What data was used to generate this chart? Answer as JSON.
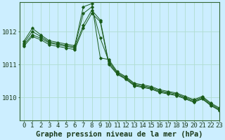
{
  "xlabel": "Graphe pression niveau de la mer (hPa)",
  "background_color": "#cceeff",
  "grid_color": "#b0ddd0",
  "line_color": "#1a5c1a",
  "xlim": [
    -0.5,
    23
  ],
  "ylim": [
    1009.3,
    1012.9
  ],
  "xticks": [
    0,
    1,
    2,
    3,
    4,
    5,
    6,
    7,
    8,
    9,
    10,
    11,
    12,
    13,
    14,
    15,
    16,
    17,
    18,
    19,
    20,
    21,
    22,
    23
  ],
  "yticks": [
    1010,
    1011,
    1012
  ],
  "series": [
    [
      1011.55,
      1011.85,
      1011.75,
      1011.6,
      1011.55,
      1011.5,
      1011.45,
      1012.1,
      1012.55,
      1012.3,
      1011.0,
      1010.7,
      1010.55,
      1010.35,
      1010.3,
      1010.25,
      1010.15,
      1010.1,
      1010.05,
      1009.95,
      1009.85,
      1009.95,
      1009.75,
      1009.6
    ],
    [
      1011.6,
      1011.9,
      1011.8,
      1011.65,
      1011.6,
      1011.55,
      1011.5,
      1012.2,
      1012.65,
      1012.35,
      1011.05,
      1010.72,
      1010.57,
      1010.37,
      1010.32,
      1010.27,
      1010.17,
      1010.12,
      1010.07,
      1009.97,
      1009.87,
      1009.97,
      1009.77,
      1009.62
    ],
    [
      1011.65,
      1012.0,
      1011.85,
      1011.68,
      1011.63,
      1011.58,
      1011.53,
      1012.55,
      1012.75,
      1011.8,
      1011.1,
      1010.75,
      1010.6,
      1010.4,
      1010.35,
      1010.3,
      1010.2,
      1010.15,
      1010.1,
      1010.0,
      1009.9,
      1010.0,
      1009.8,
      1009.65
    ],
    [
      1011.7,
      1012.1,
      1011.9,
      1011.72,
      1011.67,
      1011.62,
      1011.57,
      1012.75,
      1012.85,
      1011.2,
      1011.15,
      1010.78,
      1010.63,
      1010.43,
      1010.38,
      1010.33,
      1010.23,
      1010.18,
      1010.13,
      1010.03,
      1009.93,
      1010.03,
      1009.83,
      1009.68
    ]
  ],
  "xlabel_fontsize": 7.5,
  "tick_fontsize": 6.5,
  "figwidth": 3.2,
  "figheight": 2.0,
  "dpi": 100
}
